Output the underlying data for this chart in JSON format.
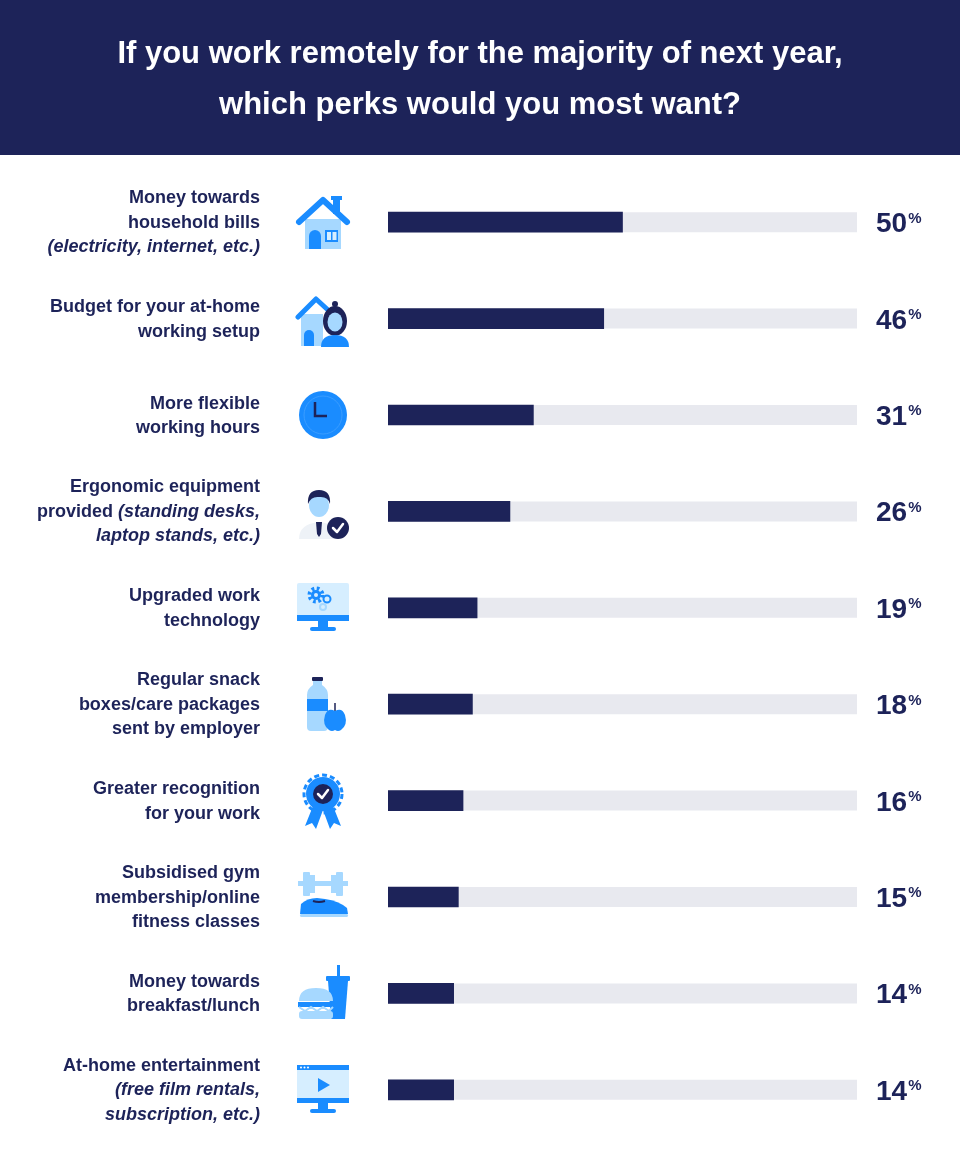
{
  "chart_data": {
    "type": "bar",
    "orientation": "horizontal",
    "title": "If you work remotely for the majority of next year, which perks would you most want?",
    "categories": [
      "Money towards\nhousehold bills\n(electricity, internet, etc.)",
      "Budget for your at-home\nworking setup",
      "More flexible\nworking hours",
      "Ergonomic equipment\nprovided (standing desks,\nlaptop stands, etc.)",
      "Upgraded work\ntechnology",
      "Regular snack\nboxes/care packages\nsent by employer",
      "Greater recognition\nfor your work",
      "Subsidised gym\nmembership/online\nfitness classes",
      "Money towards\nbreakfast/lunch",
      "At-home entertainment\n(free film rentals,\nsubscription, etc.)"
    ],
    "values": [
      50,
      46,
      31,
      26,
      19,
      18,
      16,
      15,
      14,
      14
    ],
    "color": "#1d2359",
    "value_labels": [
      "50$^{%}$",
      "46$^{%}$",
      "31$^{%}$",
      "26$^{%}$",
      "19$^{%}$",
      "18$^{%}$",
      "16$^{%}$",
      "15$^{%}$",
      "14$^{%}$",
      "14$^{%}$"
    ],
    "xlim": [
      0,
      100
    ],
    "tick_labels": "y"
  }
}
